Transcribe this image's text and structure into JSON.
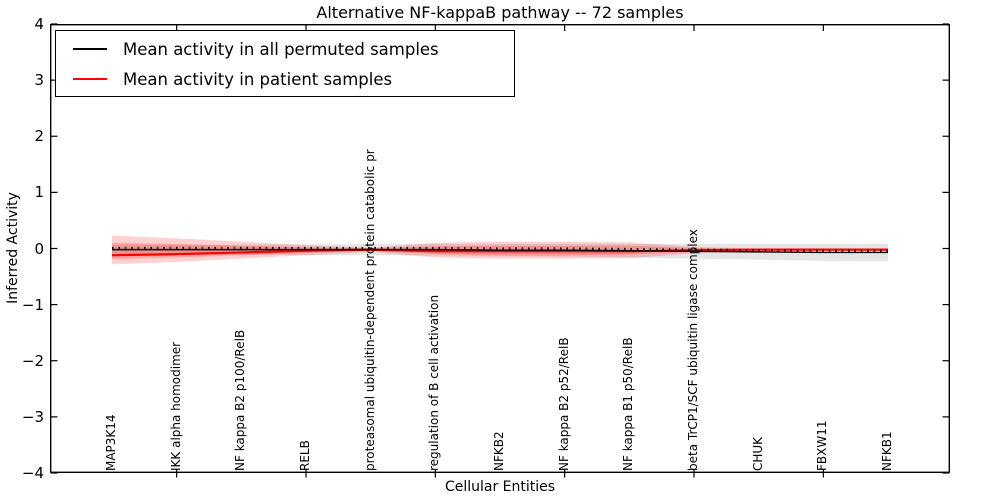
{
  "chart_data": {
    "type": "line",
    "title": "Alternative NF-kappaB pathway -- 72 samples",
    "xlabel": "Cellular Entities",
    "ylabel": "Inferred Activity",
    "ylim": [
      -4,
      4
    ],
    "yticks": [
      4,
      3,
      2,
      1,
      0,
      -1,
      -2,
      -3,
      -4
    ],
    "ytick_labels": [
      "4",
      "3",
      "2",
      "1",
      "0",
      "−1",
      "−2",
      "−3",
      "−4"
    ],
    "grid": false,
    "legend_position": "upper-left",
    "categories": [
      "MAP3K14",
      "IKK alpha homodimer",
      "NF kappa B2 p100/RelB",
      "RELB",
      "proteasomal ubiquitin-dependent protein catabolic pr",
      "regulation of B cell activation",
      "NFKB2",
      "NF kappa B2 p52/RelB",
      "NF kappa B1 p50/RelB",
      "beta TrCP1/SCF ubiquitin ligase complex",
      "CHUK",
      "FBXW11",
      "NFKB1"
    ],
    "series": [
      {
        "name": "Mean activity in all permuted samples",
        "color": "#000000",
        "style": "solid-with-dash-markers",
        "values": [
          -0.02,
          -0.02,
          -0.02,
          -0.02,
          -0.02,
          -0.02,
          -0.03,
          -0.03,
          -0.04,
          -0.05,
          -0.06,
          -0.07,
          -0.07
        ]
      },
      {
        "name": "Mean activity in patient samples",
        "color": "#ff0000",
        "style": "solid",
        "values": [
          -0.12,
          -0.1,
          -0.07,
          -0.04,
          -0.02,
          -0.05,
          -0.05,
          -0.05,
          -0.05,
          -0.03,
          -0.02,
          -0.02,
          -0.02
        ]
      }
    ],
    "bands": [
      {
        "name": "permuted-sample-range",
        "color": "#000000",
        "opacity": 0.1,
        "upper": [
          0.06,
          0.065,
          0.07,
          0.075,
          0.08,
          0.085,
          0.08,
          0.085,
          0.08,
          0.08,
          0.08,
          0.08,
          0.085
        ],
        "lower": [
          -0.1,
          -0.105,
          -0.11,
          -0.115,
          -0.12,
          -0.125,
          -0.14,
          -0.145,
          -0.16,
          -0.18,
          -0.2,
          -0.22,
          -0.225
        ]
      },
      {
        "name": "patient-range-outer",
        "color": "#ff0000",
        "opacity": 0.18,
        "upper": [
          0.23,
          0.18,
          0.12,
          0.06,
          0.01,
          0.1,
          0.12,
          0.12,
          0.11,
          0.03,
          0.0,
          0.0,
          0.0
        ],
        "lower": [
          -0.28,
          -0.24,
          -0.18,
          -0.12,
          -0.06,
          -0.16,
          -0.18,
          -0.18,
          -0.17,
          -0.09,
          -0.04,
          -0.04,
          -0.04
        ]
      },
      {
        "name": "patient-range-inner",
        "color": "#ff0000",
        "opacity": 0.22,
        "upper": [
          0.1,
          0.08,
          0.05,
          0.02,
          0.0,
          0.04,
          0.05,
          0.05,
          0.05,
          0.01,
          -0.01,
          -0.01,
          -0.01
        ],
        "lower": [
          -0.19,
          -0.16,
          -0.12,
          -0.08,
          -0.04,
          -0.1,
          -0.12,
          -0.12,
          -0.11,
          -0.06,
          -0.03,
          -0.03,
          -0.03
        ]
      }
    ]
  }
}
